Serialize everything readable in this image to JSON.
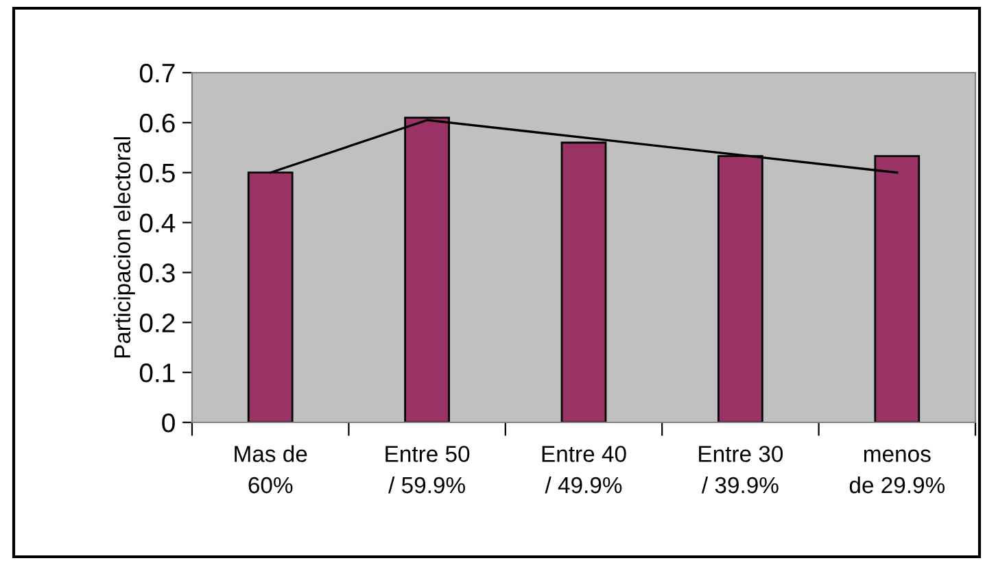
{
  "chart_data": {
    "type": "bar",
    "ylabel": "Participacion electoral",
    "categories": [
      "Mas de\n60%",
      "Entre 50\n/ 59.9%",
      "Entre 40\n/ 49.9%",
      "Entre 30\n/ 39.9%",
      "menos\nde 29.9%"
    ],
    "series": [
      {
        "color": "#993366",
        "values": [
          0.5,
          0.61,
          0.56,
          0.533,
          0.533
        ]
      },
      {
        "type": "line",
        "color": "#000000",
        "values": [
          0.5,
          0.605,
          0.57,
          0.535,
          0.5
        ]
      }
    ],
    "ylim": [
      0,
      0.7
    ],
    "yticks": [
      0,
      0.1,
      0.2,
      0.3,
      0.4,
      0.5,
      0.6,
      0.7
    ],
    "grid": false,
    "legend": false,
    "marker": "none",
    "line_style": "solid"
  }
}
